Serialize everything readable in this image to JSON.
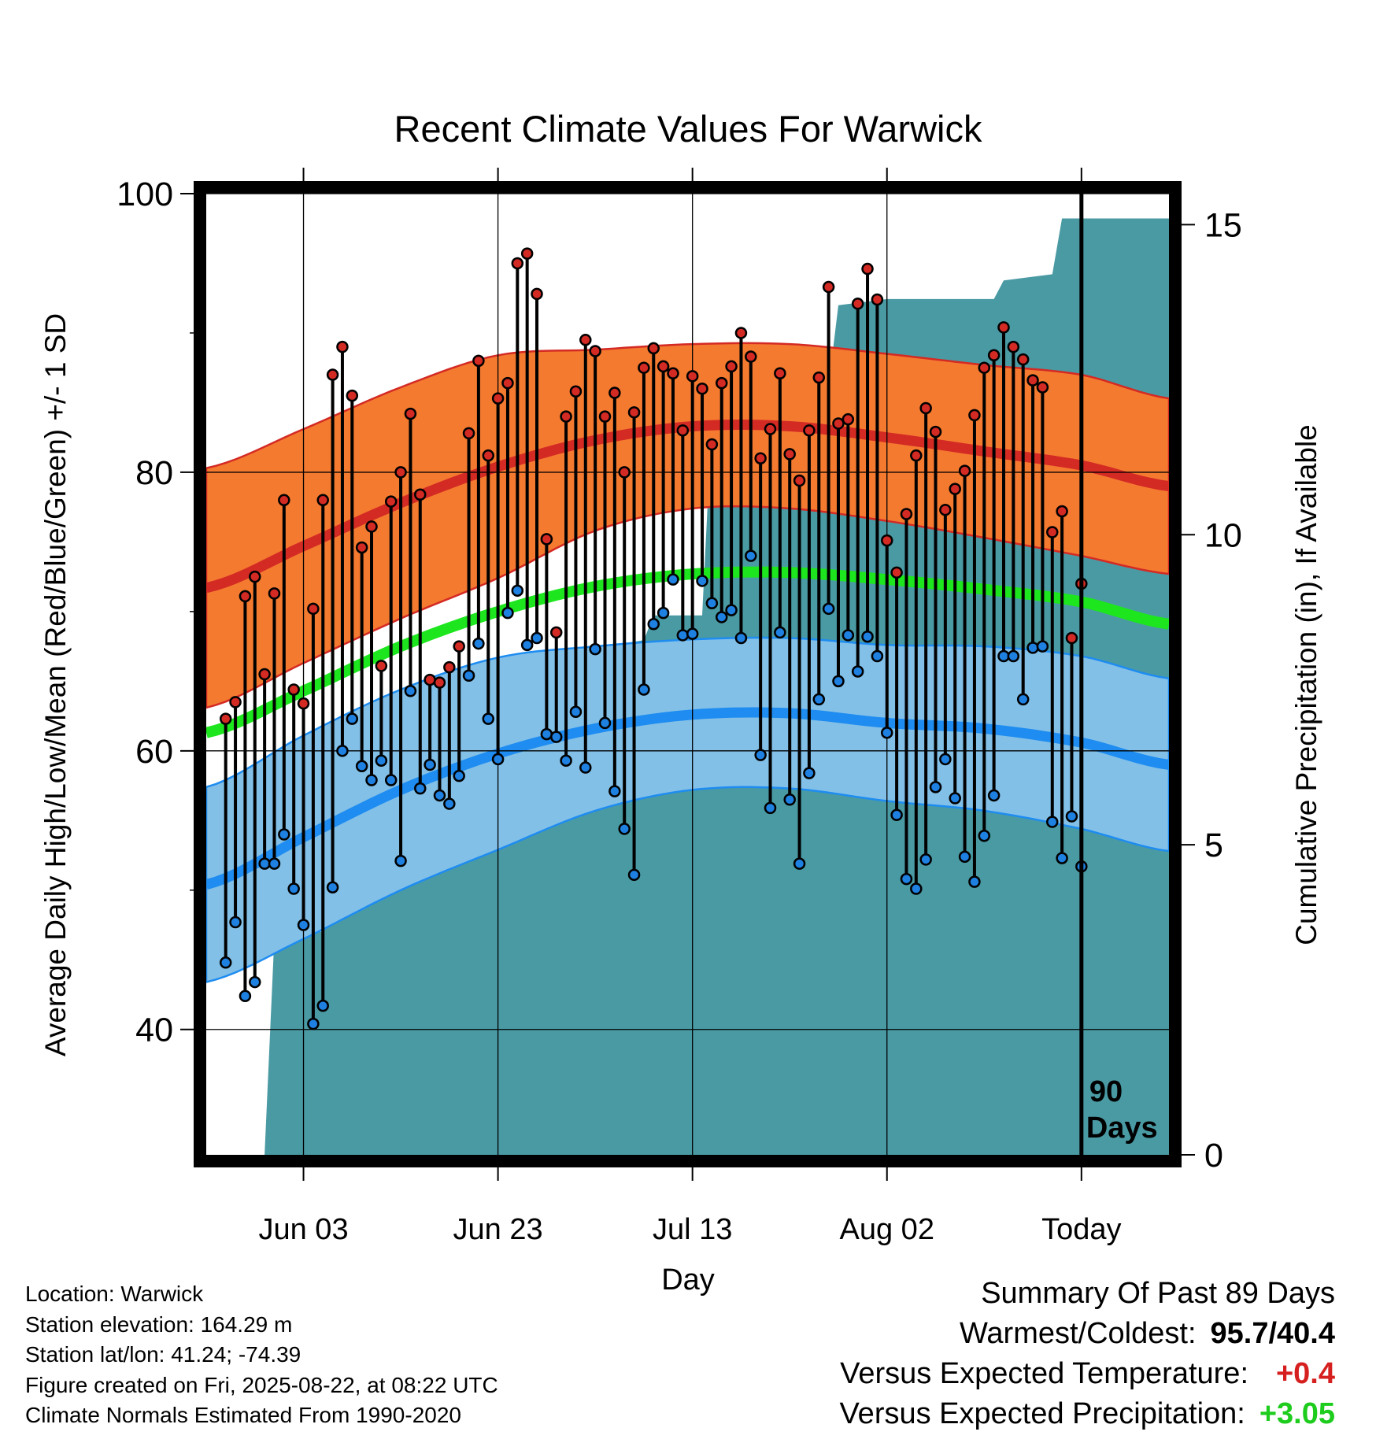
{
  "title": "Recent Climate Values For Warwick",
  "y_label_left": "Average Daily High/Low/Mean (Red/Blue/Green) +/- 1 SD",
  "y_label_right": "Cumulative Precipitation (in), If Available",
  "x_label": "Day",
  "marker_label_line1": "90",
  "marker_label_line2": "Days",
  "footer": {
    "location": "Location: Warwick",
    "elevation": "Station elevation: 164.29 m",
    "latlon": "Station lat/lon: 41.24; -74.39",
    "created": "Figure created on Fri, 2025-08-22, at 08:22 UTC",
    "normals": "Climate Normals Estimated From 1990-2020"
  },
  "summary": {
    "heading": "Summary Of Past 89 Days",
    "warm_cold_label": "Warmest/Coldest:",
    "warm_cold_value": "95.7/40.4",
    "temp_label": "Versus Expected Temperature:",
    "temp_value": "+0.4",
    "prcp_label": "Versus Expected Precipitation:",
    "prcp_value": "+3.05"
  },
  "colors": {
    "high_band": "#f47a30",
    "high_line": "#d42a24",
    "mean_line": "#1ee61e",
    "low_band": "#82c0e8",
    "low_line": "#1e8cf0",
    "precip": "#4a9aa4",
    "high_dot": "#d42a24",
    "low_dot": "#1e80e0"
  },
  "chart_data": {
    "type": "line",
    "x_axis": {
      "range_days": [
        -90,
        9
      ],
      "ticks": [
        {
          "day": -80,
          "label": "Jun 03"
        },
        {
          "day": -60,
          "label": "Jun 23"
        },
        {
          "day": -40,
          "label": "Jul 13"
        },
        {
          "day": -20,
          "label": "Aug 02"
        },
        {
          "day": 0,
          "label": "Today"
        }
      ]
    },
    "y_axis_left": {
      "range": [
        31,
        100
      ],
      "ticks": [
        40,
        60,
        80,
        100
      ]
    },
    "y_axis_right": {
      "range": [
        0,
        15.5
      ],
      "ticks": [
        0,
        5,
        10,
        15
      ]
    },
    "grid": true,
    "normals": {
      "days": [
        -90,
        -80,
        -70,
        -60,
        -50,
        -40,
        -30,
        -20,
        -10,
        0,
        9
      ],
      "high": [
        71.7,
        74.7,
        77.8,
        80.4,
        82.3,
        83.3,
        83.3,
        82.5,
        81.5,
        80.5,
        79.0
      ],
      "high_sd": [
        8.6,
        8.4,
        8.3,
        8.0,
        6.5,
        5.9,
        5.9,
        6.0,
        6.2,
        6.5,
        6.3
      ],
      "mean": [
        61.3,
        64.3,
        67.5,
        70.0,
        71.8,
        72.7,
        72.8,
        72.3,
        71.6,
        70.7,
        69.1
      ],
      "low": [
        50.4,
        53.8,
        57.2,
        59.8,
        61.6,
        62.6,
        62.7,
        62.0,
        61.6,
        60.6,
        59.0
      ],
      "low_sd": [
        7.0,
        7.3,
        7.2,
        6.9,
        5.9,
        5.4,
        5.4,
        5.6,
        5.9,
        6.2,
        6.2
      ]
    },
    "series": [
      {
        "name": "High",
        "values": [
          62.3,
          63.5,
          71.1,
          72.5,
          65.5,
          71.3,
          78.0,
          64.4,
          63.4,
          70.2,
          78.0,
          87.0,
          89.0,
          85.5,
          74.6,
          76.1,
          66.1,
          77.9,
          80.0,
          84.2,
          78.4,
          65.1,
          64.9,
          66.0,
          67.5,
          82.8,
          88.0,
          81.2,
          85.3,
          86.4,
          95.0,
          95.7,
          92.8,
          75.2,
          68.5,
          84.0,
          85.8,
          89.5,
          88.7,
          84.0,
          85.7,
          80.0,
          84.3,
          87.5,
          88.9,
          87.6,
          87.1,
          83.0,
          86.9,
          86.0,
          82.0,
          86.4,
          87.6,
          90.0,
          88.3,
          81.0,
          83.1,
          87.1,
          81.3,
          79.4,
          83.0,
          86.8,
          93.3,
          83.5,
          83.8,
          92.1,
          94.6,
          92.4,
          75.1,
          72.8,
          77.0,
          81.2,
          84.6,
          82.9,
          77.3,
          78.8,
          80.1,
          84.1,
          87.5,
          88.4,
          90.4,
          89.0,
          88.1,
          86.6,
          86.1,
          75.7,
          77.2,
          68.1,
          72.0
        ]
      },
      {
        "name": "Low",
        "values": [
          44.8,
          47.7,
          42.4,
          43.4,
          51.9,
          51.9,
          54.0,
          50.1,
          47.5,
          40.4,
          41.7,
          50.2,
          60.0,
          62.3,
          58.9,
          57.9,
          59.3,
          57.9,
          52.1,
          64.3,
          57.3,
          59.0,
          56.8,
          56.2,
          58.2,
          65.4,
          67.7,
          62.3,
          59.4,
          69.9,
          71.5,
          67.6,
          68.1,
          61.2,
          61.0,
          59.3,
          62.8,
          58.8,
          67.3,
          62.0,
          57.1,
          54.4,
          51.1,
          64.4,
          69.1,
          69.9,
          72.3,
          68.3,
          68.4,
          72.2,
          70.6,
          69.6,
          70.1,
          68.1,
          74.0,
          59.7,
          55.9,
          68.5,
          56.5,
          51.9,
          58.4,
          63.7,
          70.2,
          65.0,
          68.3,
          65.7,
          68.2,
          66.8,
          61.3,
          55.4,
          50.8,
          50.1,
          52.2,
          57.4,
          59.4,
          56.6,
          52.4,
          50.6,
          53.9,
          56.8,
          66.8,
          66.8,
          63.7,
          67.4,
          67.5,
          54.9,
          52.3,
          55.3,
          51.7
        ]
      },
      {
        "name": "Cumulative Precipitation",
        "points": [
          [
            -90,
            0
          ],
          [
            -84,
            0
          ],
          [
            -83,
            3.5
          ],
          [
            -78,
            3.6
          ],
          [
            -77,
            3.9
          ],
          [
            -74,
            4.1
          ],
          [
            -73,
            4.5
          ],
          [
            -68,
            4.6
          ],
          [
            -66,
            4.7
          ],
          [
            -64,
            4.9
          ],
          [
            -63,
            7.8
          ],
          [
            -58,
            7.9
          ],
          [
            -55,
            7.9
          ],
          [
            -51,
            8.1
          ],
          [
            -49,
            8.2
          ],
          [
            -45,
            8.3
          ],
          [
            -44,
            8.7
          ],
          [
            -39,
            8.7
          ],
          [
            -38,
            11.9
          ],
          [
            -30,
            11.9
          ],
          [
            -29,
            12.4
          ],
          [
            -26,
            12.4
          ],
          [
            -25,
            13.7
          ],
          [
            -20,
            13.8
          ],
          [
            -19,
            13.8
          ],
          [
            -9,
            13.8
          ],
          [
            -8,
            14.1
          ],
          [
            -3,
            14.2
          ],
          [
            -2,
            15.1
          ],
          [
            -1,
            15.1
          ],
          [
            9,
            15.1
          ]
        ]
      }
    ]
  }
}
